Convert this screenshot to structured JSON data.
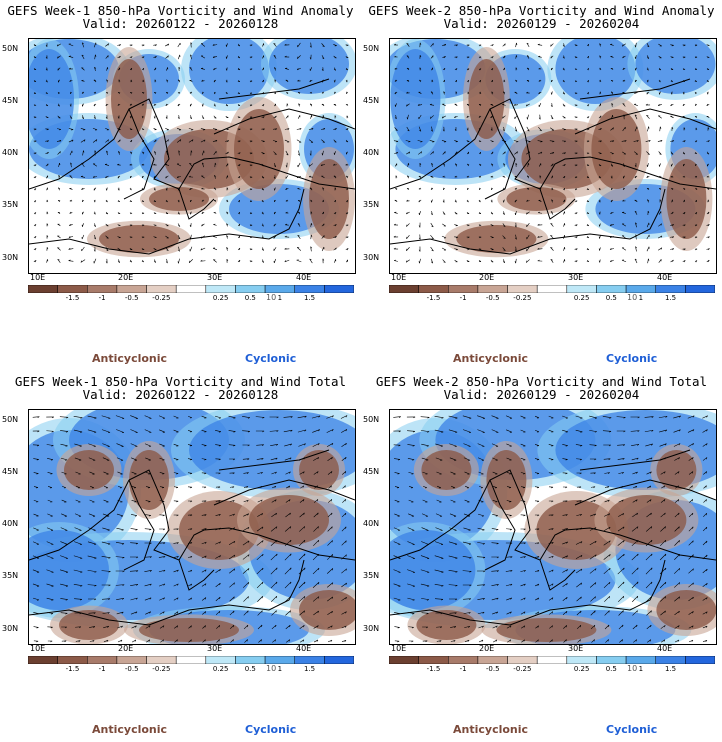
{
  "panels": [
    {
      "title_line1": "GEFS Week-1 850-hPa Vorticity and Wind Anomaly",
      "title_line2": "Valid: 20260122 - 20260128",
      "variant": "anomaly"
    },
    {
      "title_line1": "GEFS Week-2 850-hPa Vorticity and Wind Anomaly",
      "title_line2": "Valid: 20260129 - 20260204",
      "variant": "anomaly"
    },
    {
      "title_line1": "GEFS Week-1 850-hPa Vorticity and Wind Total",
      "title_line2": "Valid: 20260122 - 20260128",
      "variant": "total"
    },
    {
      "title_line1": "GEFS Week-2 850-hPa Vorticity and Wind Total",
      "title_line2": "Valid: 20260129 - 20260204",
      "variant": "total"
    }
  ],
  "lat_labels": [
    "50N",
    "45N",
    "40N",
    "35N",
    "30N"
  ],
  "lon_labels": [
    "10E",
    "20E",
    "30E",
    "40E"
  ],
  "colorbar": {
    "labels": [
      "-1.5",
      "-1",
      "-0.5",
      "-0.25",
      "0.25",
      "0.5",
      "1",
      "1.5"
    ],
    "unit": "10",
    "colors": [
      "#6b3f30",
      "#8c5a48",
      "#a87b6a",
      "#c8a595",
      "#e4cfc4",
      "#ffffff",
      "#bfe8f7",
      "#86cdf0",
      "#5aa9ea",
      "#3b82e6",
      "#2366dd"
    ]
  },
  "legend": {
    "anticyclonic": "Anticyclonic",
    "cyclonic": "Cyclonic"
  }
}
